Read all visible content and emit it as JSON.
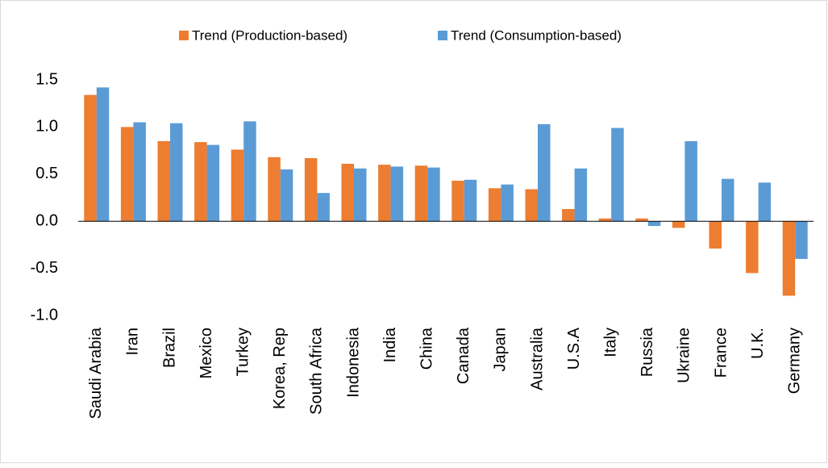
{
  "chart_data": {
    "type": "bar",
    "categories": [
      "Saudi Arabia",
      "Iran",
      "Brazil",
      "Mexico",
      "Turkey",
      "Korea, Rep",
      "South Africa",
      "Indonesia",
      "India",
      "China",
      "Canada",
      "Japan",
      "Australia",
      "U.S.A",
      "Italy",
      "Russia",
      "Ukraine",
      "France",
      "U.K.",
      "Germany"
    ],
    "series": [
      {
        "name": "Trend (Production-based)",
        "color": "#ED7D31",
        "values": [
          1.34,
          1.0,
          0.85,
          0.84,
          0.76,
          0.68,
          0.67,
          0.61,
          0.6,
          0.59,
          0.43,
          0.35,
          0.34,
          0.13,
          0.03,
          0.03,
          -0.07,
          -0.29,
          -0.55,
          -0.79
        ]
      },
      {
        "name": "Trend (Consumption-based)",
        "color": "#5B9BD5",
        "values": [
          1.42,
          1.05,
          1.04,
          0.81,
          1.06,
          0.55,
          0.3,
          0.56,
          0.58,
          0.57,
          0.44,
          0.39,
          1.03,
          0.56,
          0.99,
          -0.05,
          0.85,
          0.45,
          0.41,
          -0.4
        ]
      }
    ],
    "ylim": [
      -1.0,
      1.5
    ],
    "yticks": [
      {
        "value": -1.0,
        "label": "-1.0"
      },
      -0.5,
      {
        "value": 0.0,
        "label": "0.0"
      },
      0.5,
      {
        "value": 1.0,
        "label": "1.0"
      },
      1.5
    ],
    "grid": false
  }
}
